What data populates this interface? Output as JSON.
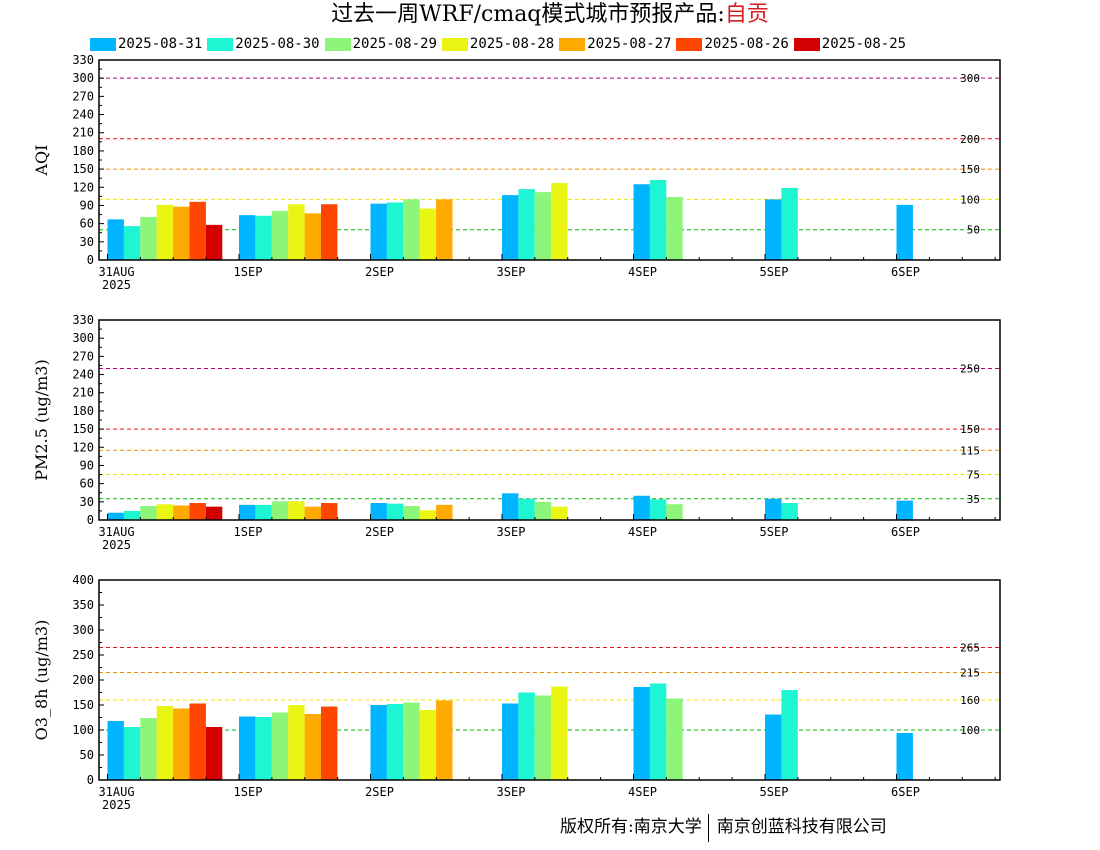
{
  "title": {
    "main": "过去一周WRF/cmaq模式城市预报产品:",
    "city": "自贡"
  },
  "colors": {
    "series": [
      "#00b4ff",
      "#1ef5d2",
      "#8cf57a",
      "#ebf514",
      "#ffaa00",
      "#ff4600",
      "#d20000"
    ],
    "threshold_purple": "#b4006e",
    "threshold_red": "#e61414",
    "threshold_orange": "#eb8c00",
    "threshold_yellow": "#ebe600",
    "threshold_green": "#00b400"
  },
  "legend": [
    "2025-08-31",
    "2025-08-30",
    "2025-08-29",
    "2025-08-28",
    "2025-08-27",
    "2025-08-26",
    "2025-08-25"
  ],
  "chart_data": [
    {
      "type": "bar",
      "ylabel": "AQI",
      "ylim": [
        0,
        330
      ],
      "yticks": [
        0,
        30,
        60,
        90,
        120,
        150,
        180,
        210,
        240,
        270,
        300,
        330
      ],
      "categories": [
        "31AUG\n2025",
        "1SEP",
        "2SEP",
        "3SEP",
        "4SEP",
        "5SEP",
        "6SEP"
      ],
      "thresholds": [
        {
          "value": 300,
          "label": "300",
          "color": "purple"
        },
        {
          "value": 200,
          "label": "200",
          "color": "red"
        },
        {
          "value": 150,
          "label": "150",
          "color": "orange"
        },
        {
          "value": 100,
          "label": "100",
          "color": "yellow"
        },
        {
          "value": 50,
          "label": "50",
          "color": "green"
        }
      ],
      "series": [
        {
          "name": "2025-08-31",
          "values": [
            67,
            74,
            93,
            107,
            125,
            100,
            91
          ]
        },
        {
          "name": "2025-08-30",
          "values": [
            56,
            73,
            95,
            117,
            132,
            119,
            null
          ]
        },
        {
          "name": "2025-08-29",
          "values": [
            71,
            81,
            100,
            112,
            104,
            null,
            null
          ]
        },
        {
          "name": "2025-08-28",
          "values": [
            91,
            92,
            85,
            127,
            null,
            null,
            null
          ]
        },
        {
          "name": "2025-08-27",
          "values": [
            88,
            77,
            100,
            null,
            null,
            null,
            null
          ]
        },
        {
          "name": "2025-08-26",
          "values": [
            96,
            92,
            null,
            null,
            null,
            null,
            null
          ]
        },
        {
          "name": "2025-08-25",
          "values": [
            58,
            null,
            null,
            null,
            null,
            null,
            null
          ]
        }
      ]
    },
    {
      "type": "bar",
      "ylabel": "PM2.5 (ug/m3)",
      "ylim": [
        0,
        330
      ],
      "yticks": [
        0,
        30,
        60,
        90,
        120,
        150,
        180,
        210,
        240,
        270,
        300,
        330
      ],
      "categories": [
        "31AUG\n2025",
        "1SEP",
        "2SEP",
        "3SEP",
        "4SEP",
        "5SEP",
        "6SEP"
      ],
      "thresholds": [
        {
          "value": 250,
          "label": "250",
          "color": "purple"
        },
        {
          "value": 150,
          "label": "150",
          "color": "red"
        },
        {
          "value": 115,
          "label": "115",
          "color": "orange"
        },
        {
          "value": 75,
          "label": "75",
          "color": "yellow"
        },
        {
          "value": 35,
          "label": "35",
          "color": "green"
        }
      ],
      "series": [
        {
          "name": "2025-08-31",
          "values": [
            12,
            25,
            28,
            44,
            40,
            35,
            32
          ]
        },
        {
          "name": "2025-08-30",
          "values": [
            15,
            25,
            27,
            35,
            34,
            28,
            null
          ]
        },
        {
          "name": "2025-08-29",
          "values": [
            23,
            31,
            23,
            30,
            26,
            null,
            null
          ]
        },
        {
          "name": "2025-08-28",
          "values": [
            26,
            31,
            16,
            22,
            null,
            null,
            null
          ]
        },
        {
          "name": "2025-08-27",
          "values": [
            24,
            22,
            25,
            null,
            null,
            null,
            null
          ]
        },
        {
          "name": "2025-08-26",
          "values": [
            28,
            28,
            null,
            null,
            null,
            null,
            null
          ]
        },
        {
          "name": "2025-08-25",
          "values": [
            22,
            null,
            null,
            null,
            null,
            null,
            null
          ]
        }
      ]
    },
    {
      "type": "bar",
      "ylabel": "O3_8h (ug/m3)",
      "ylim": [
        0,
        400
      ],
      "yticks": [
        0,
        50,
        100,
        150,
        200,
        250,
        300,
        350,
        400
      ],
      "categories": [
        "31AUG\n2025",
        "1SEP",
        "2SEP",
        "3SEP",
        "4SEP",
        "5SEP",
        "6SEP"
      ],
      "thresholds": [
        {
          "value": 265,
          "label": "265",
          "color": "red"
        },
        {
          "value": 215,
          "label": "215",
          "color": "orange"
        },
        {
          "value": 160,
          "label": "160",
          "color": "yellow"
        },
        {
          "value": 100,
          "label": "100",
          "color": "green"
        }
      ],
      "series": [
        {
          "name": "2025-08-31",
          "values": [
            118,
            127,
            150,
            153,
            186,
            131,
            94
          ]
        },
        {
          "name": "2025-08-30",
          "values": [
            106,
            126,
            152,
            175,
            193,
            180,
            null
          ]
        },
        {
          "name": "2025-08-29",
          "values": [
            124,
            135,
            155,
            169,
            163,
            null,
            null
          ]
        },
        {
          "name": "2025-08-28",
          "values": [
            148,
            150,
            140,
            187,
            null,
            null,
            null
          ]
        },
        {
          "name": "2025-08-27",
          "values": [
            143,
            132,
            159,
            null,
            null,
            null,
            null
          ]
        },
        {
          "name": "2025-08-26",
          "values": [
            153,
            147,
            null,
            null,
            null,
            null,
            null
          ]
        },
        {
          "name": "2025-08-25",
          "values": [
            106,
            null,
            null,
            null,
            null,
            null,
            null
          ]
        }
      ]
    }
  ],
  "copyright": {
    "left": "版权所有:南京大学",
    "right": "南京创蓝科技有限公司"
  }
}
